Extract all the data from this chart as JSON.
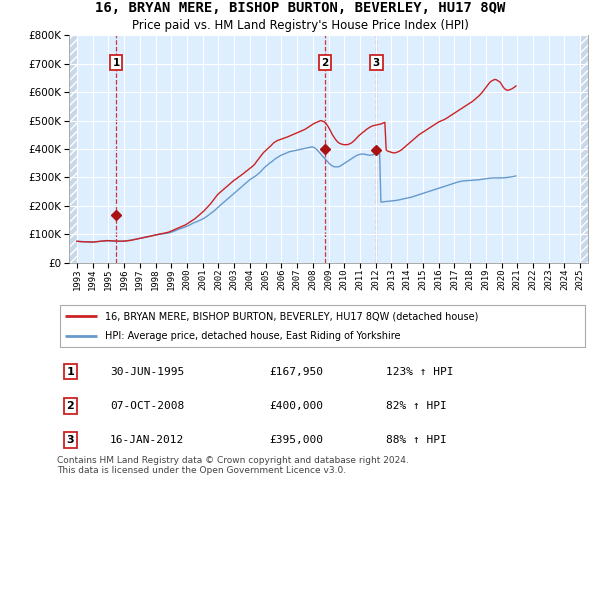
{
  "title": "16, BRYAN MERE, BISHOP BURTON, BEVERLEY, HU17 8QW",
  "subtitle": "Price paid vs. HM Land Registry's House Price Index (HPI)",
  "title_fontsize": 10,
  "subtitle_fontsize": 8.5,
  "plot_bg_color": "#ddeeff",
  "grid_color": "#ffffff",
  "ylim": [
    0,
    800000
  ],
  "yticks": [
    0,
    100000,
    200000,
    300000,
    400000,
    500000,
    600000,
    700000,
    800000
  ],
  "ytick_labels": [
    "£0",
    "£100K",
    "£200K",
    "£300K",
    "£400K",
    "£500K",
    "£600K",
    "£700K",
    "£800K"
  ],
  "xlim_start": 1992.5,
  "xlim_end": 2025.5,
  "sale_line_color": "#cc2222",
  "hpi_line_color": "#6699cc",
  "sale_marker_color": "#aa1111",
  "transactions": [
    {
      "date_num": 1995.5,
      "price": 167950,
      "label": "1"
    },
    {
      "date_num": 2008.77,
      "price": 400000,
      "label": "2"
    },
    {
      "date_num": 2012.04,
      "price": 395000,
      "label": "3"
    }
  ],
  "vline_dates": [
    1995.5,
    2008.77,
    2012.04
  ],
  "vline_color": "#cc2222",
  "legend_entries": [
    "16, BRYAN MERE, BISHOP BURTON, BEVERLEY, HU17 8QW (detached house)",
    "HPI: Average price, detached house, East Riding of Yorkshire"
  ],
  "table_rows": [
    {
      "num": "1",
      "date": "30-JUN-1995",
      "price": "£167,950",
      "hpi": "123% ↑ HPI"
    },
    {
      "num": "2",
      "date": "07-OCT-2008",
      "price": "£400,000",
      "hpi": "82% ↑ HPI"
    },
    {
      "num": "3",
      "date": "16-JAN-2012",
      "price": "£395,000",
      "hpi": "88% ↑ HPI"
    }
  ],
  "footnote": "Contains HM Land Registry data © Crown copyright and database right 2024.\nThis data is licensed under the Open Government Licence v3.0.",
  "hpi_monthly": {
    "start_year": 1993.0,
    "end_year": 2024.75,
    "values": [
      75000,
      74500,
      74000,
      73700,
      73500,
      73300,
      73100,
      72900,
      72700,
      72500,
      72300,
      72100,
      72000,
      72500,
      73000,
      73500,
      74000,
      74500,
      75000,
      75500,
      76000,
      76500,
      77000,
      77500,
      77000,
      76800,
      76600,
      76400,
      76200,
      76000,
      75800,
      75600,
      75400,
      75200,
      75000,
      75200,
      75500,
      76000,
      76500,
      77000,
      77500,
      78000,
      79000,
      80000,
      81000,
      82000,
      83000,
      84000,
      85000,
      86000,
      87000,
      88000,
      89000,
      90000,
      91000,
      92000,
      93000,
      94000,
      95000,
      96500,
      97000,
      98000,
      99000,
      100000,
      101000,
      102000,
      103000,
      104000,
      105000,
      106000,
      107000,
      109000,
      111000,
      113000,
      115000,
      117000,
      119000,
      121000,
      123000,
      125000,
      127000,
      129000,
      131000,
      133000,
      136000,
      139000,
      142000,
      145000,
      148000,
      151000,
      154000,
      158000,
      162000,
      166000,
      170000,
      174000,
      178000,
      182000,
      187000,
      192000,
      197000,
      202000,
      207000,
      213000,
      219000,
      225000,
      231000,
      237000,
      242000,
      246000,
      250000,
      254000,
      258000,
      262000,
      266000,
      270000,
      274000,
      278000,
      282000,
      286000,
      290000,
      293000,
      296000,
      300000,
      303000,
      306000,
      310000,
      313000,
      317000,
      321000,
      324000,
      328000,
      332000,
      335000,
      339000,
      343000,
      348000,
      355000,
      361000,
      367000,
      373000,
      379000,
      385000,
      390000,
      394000,
      399000,
      403000,
      407000,
      411000,
      416000,
      421000,
      424000,
      427000,
      430000,
      431000,
      433000,
      435000,
      436000,
      438000,
      440000,
      441000,
      443000,
      445000,
      447000,
      449000,
      451000,
      453000,
      455000,
      457000,
      459000,
      461000,
      463000,
      465000,
      467000,
      469000,
      472000,
      475000,
      478000,
      481000,
      484000,
      487000,
      490000,
      492000,
      494000,
      496000,
      498000,
      500000,
      499000,
      497000,
      495000,
      490000,
      484000,
      477000,
      468000,
      459000,
      450000,
      443000,
      436000,
      430000,
      425000,
      421000,
      419000,
      417000,
      416000,
      415000,
      415000,
      415000,
      416000,
      418000,
      420000,
      423000,
      427000,
      431000,
      436000,
      441000,
      446000,
      450000,
      454000,
      458000,
      461000,
      465000,
      469000,
      472000,
      475000,
      478000,
      480000,
      482000,
      483000,
      484000,
      485000,
      486000,
      487000,
      488000,
      490000,
      492000,
      494000,
      397000,
      393000,
      391000,
      390000,
      388000,
      387000,
      386000,
      387000,
      388000,
      390000,
      392000,
      395000,
      398000,
      402000,
      406000,
      410000,
      414000,
      418000,
      422000,
      426000,
      430000,
      434000,
      438000,
      442000,
      446000,
      450000,
      453000,
      456000,
      459000,
      462000,
      465000,
      468000,
      471000,
      474000,
      477000,
      480000,
      483000,
      486000,
      489000,
      492000,
      495000,
      497000,
      499000,
      501000,
      503000,
      505000,
      508000,
      511000,
      514000,
      517000,
      520000,
      523000,
      526000,
      529000,
      532000,
      535000,
      538000,
      541000,
      544000,
      547000,
      550000,
      553000,
      556000,
      559000,
      562000,
      565000,
      568000,
      572000,
      576000,
      580000,
      584000,
      588000,
      593000,
      598000,
      604000,
      610000,
      616000,
      622000,
      628000,
      634000,
      638000,
      641000,
      643000,
      645000,
      644000,
      641000,
      638000,
      635000,
      628000,
      620000,
      614000,
      610000,
      607000,
      607000,
      608000,
      610000,
      612000,
      615000,
      618000,
      622000
    ]
  },
  "hpi_data_monthly": {
    "start_year": 1993.0,
    "end_year": 2024.75,
    "values": [
      75000,
      74500,
      74200,
      74000,
      73800,
      73500,
      73200,
      73000,
      72800,
      72600,
      72500,
      72300,
      72300,
      72500,
      73000,
      73500,
      74000,
      74500,
      75000,
      75200,
      75400,
      75500,
      76000,
      76500,
      76500,
      76300,
      76100,
      75900,
      75700,
      75500,
      75300,
      75200,
      75000,
      75100,
      75300,
      75500,
      75800,
      76200,
      76700,
      77300,
      78000,
      78800,
      79700,
      80700,
      81700,
      82700,
      83500,
      84300,
      85000,
      85800,
      86600,
      87500,
      88500,
      89500,
      90500,
      91500,
      92500,
      93500,
      94500,
      95700,
      97000,
      98000,
      99000,
      100000,
      100500,
      101000,
      101500,
      102000,
      102500,
      103000,
      104000,
      105500,
      107000,
      108500,
      110000,
      112000,
      114000,
      116000,
      118000,
      119500,
      121000,
      122500,
      124000,
      126000,
      128000,
      130000,
      132000,
      134500,
      137000,
      139500,
      141500,
      143000,
      145000,
      147000,
      149000,
      151500,
      153500,
      156000,
      159000,
      162000,
      165500,
      169000,
      172500,
      176000,
      179500,
      183000,
      187000,
      191500,
      196000,
      200000,
      204000,
      208000,
      212000,
      216000,
      220000,
      224000,
      228000,
      232000,
      236000,
      240000,
      244000,
      248000,
      252000,
      256000,
      260000,
      264000,
      268000,
      272000,
      276000,
      280000,
      284000,
      288000,
      292000,
      295000,
      298000,
      301000,
      304000,
      307000,
      311000,
      315000,
      319000,
      324000,
      329000,
      334000,
      338000,
      342000,
      346000,
      350000,
      353000,
      356000,
      360000,
      364000,
      367000,
      370000,
      373000,
      376000,
      378000,
      380000,
      382000,
      384000,
      386000,
      388000,
      390000,
      391000,
      392000,
      393000,
      394000,
      395000,
      396000,
      397000,
      398000,
      399000,
      400000,
      401000,
      402000,
      403000,
      404000,
      405000,
      406000,
      407000,
      407000,
      405000,
      402000,
      398000,
      393000,
      388000,
      383000,
      377000,
      372000,
      367000,
      362000,
      357000,
      352000,
      347000,
      343000,
      340000,
      338000,
      337000,
      337000,
      337000,
      338000,
      340000,
      343000,
      346000,
      349000,
      352000,
      355000,
      358000,
      361000,
      364000,
      367000,
      370000,
      373000,
      376000,
      378000,
      380000,
      381000,
      382000,
      382000,
      382000,
      381000,
      380000,
      379000,
      378000,
      378000,
      379000,
      380000,
      381000,
      382000,
      383000,
      384000,
      385000,
      213000,
      213500,
      214000,
      214500,
      215000,
      215500,
      216000,
      216500,
      217000,
      217500,
      218000,
      218500,
      219000,
      220000,
      221000,
      222000,
      223000,
      224000,
      225000,
      226000,
      227000,
      228000,
      229000,
      230000,
      231500,
      233000,
      234500,
      236000,
      237500,
      239000,
      240500,
      242000,
      243500,
      245000,
      246500,
      248000,
      249500,
      251000,
      252500,
      254000,
      255500,
      257000,
      258500,
      260000,
      261500,
      263000,
      264500,
      266000,
      267500,
      269000,
      270500,
      272000,
      273500,
      275000,
      276500,
      278000,
      279500,
      281000,
      282500,
      284000,
      285000,
      286000,
      287000,
      287500,
      288000,
      288200,
      288500,
      288700,
      289000,
      289300,
      289600,
      289900,
      290300,
      290700,
      291200,
      291800,
      292400,
      293100,
      293800,
      294500,
      295200,
      295900,
      296500,
      297000,
      297400,
      297700,
      297900,
      298000,
      298000,
      298000,
      298000,
      298000,
      298100,
      298300,
      298600,
      299000,
      299500,
      300100,
      300700,
      301400,
      302200,
      303000,
      304000,
      305000
    ]
  }
}
